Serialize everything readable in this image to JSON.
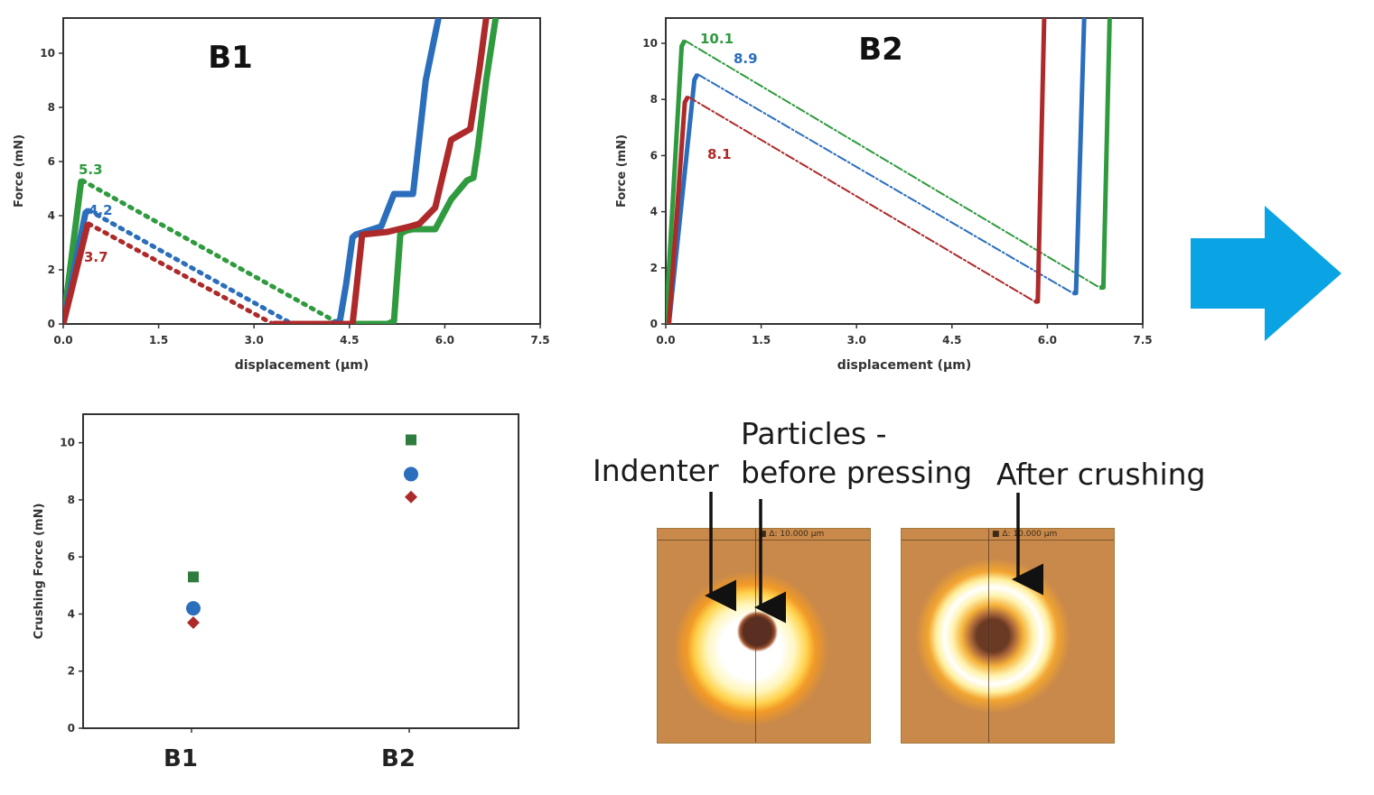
{
  "chart_data": [
    {
      "type": "line",
      "title": "B1",
      "xlabel": "displacement (µm)",
      "ylabel": "Force (mN)",
      "xlim": [
        0,
        7.5
      ],
      "ylim": [
        0,
        11.3
      ],
      "xticks": [
        "0.0",
        "1.5",
        "3.0",
        "4.5",
        "6.0",
        "7.5"
      ],
      "yticks": [
        "0",
        "2",
        "4",
        "6",
        "8",
        "10"
      ],
      "grid": false,
      "series": [
        {
          "color": "#2f9a3e",
          "peak_label": "5.3",
          "x": [
            0.0,
            0.28,
            0.3,
            4.35,
            5.1,
            5.2,
            5.3,
            5.35,
            5.4,
            5.5,
            5.85,
            6.1,
            6.35,
            6.45,
            6.52,
            6.65,
            6.8
          ],
          "y": [
            0.0,
            5.25,
            5.3,
            0.0,
            0.0,
            0.1,
            3.3,
            3.4,
            3.45,
            3.5,
            3.5,
            4.6,
            5.3,
            5.4,
            6.5,
            9.0,
            11.3
          ]
        },
        {
          "color": "#2a6ebc",
          "peak_label": "4.2",
          "x": [
            0.0,
            0.35,
            0.4,
            3.6,
            4.2,
            4.35,
            4.45,
            4.55,
            4.6,
            5.0,
            5.2,
            5.5,
            5.7,
            5.9
          ],
          "y": [
            0.0,
            4.1,
            4.2,
            0.0,
            0.0,
            0.1,
            1.5,
            3.2,
            3.3,
            3.6,
            4.8,
            4.8,
            9.0,
            11.3
          ]
        },
        {
          "color": "#ae2a2a",
          "peak_label": "3.7",
          "x": [
            0.0,
            0.38,
            0.4,
            3.3,
            4.55,
            4.62,
            4.7,
            5.1,
            5.45,
            5.6,
            5.85,
            6.1,
            6.4,
            6.55,
            6.65
          ],
          "y": [
            0.0,
            3.65,
            3.7,
            0.0,
            0.0,
            1.5,
            3.3,
            3.4,
            3.6,
            3.7,
            4.3,
            6.8,
            7.2,
            9.5,
            11.3
          ]
        }
      ]
    },
    {
      "type": "line",
      "title": "B2",
      "xlabel": "displacement (µm)",
      "ylabel": "Force (mN)",
      "xlim": [
        0,
        7.5
      ],
      "ylim": [
        0,
        10.9
      ],
      "xticks": [
        "0.0",
        "1.5",
        "3.0",
        "4.5",
        "6.0",
        "7.5"
      ],
      "yticks": [
        "0",
        "2",
        "4",
        "6",
        "8",
        "10"
      ],
      "grid": false,
      "series": [
        {
          "color": "#2f9a3e",
          "peak_label": "10.1",
          "x": [
            0.0,
            0.25,
            0.3,
            6.82,
            6.88,
            6.98
          ],
          "y": [
            0.0,
            9.9,
            10.1,
            1.3,
            1.3,
            10.9
          ]
        },
        {
          "color": "#2a6ebc",
          "peak_label": "8.9",
          "x": [
            0.05,
            0.45,
            0.5,
            6.4,
            6.45,
            6.58
          ],
          "y": [
            0.0,
            8.7,
            8.9,
            1.1,
            1.1,
            10.9
          ]
        },
        {
          "color": "#ae2a2a",
          "peak_label": "8.1",
          "x": [
            0.05,
            0.3,
            0.35,
            5.8,
            5.85,
            5.95
          ],
          "y": [
            0.0,
            7.9,
            8.1,
            0.8,
            0.8,
            10.9
          ]
        }
      ]
    },
    {
      "type": "scatter",
      "ylabel": "Crushing Force (mN)",
      "categories": [
        "B1",
        "B2"
      ],
      "ylim": [
        0,
        11.0
      ],
      "yticks": [
        "0",
        "2",
        "4",
        "6",
        "8",
        "10"
      ],
      "grid": false,
      "series": [
        {
          "color": "#2f7d3e",
          "marker": "square",
          "values": [
            5.3,
            10.1
          ]
        },
        {
          "color": "#2a6ebc",
          "marker": "circle",
          "values": [
            4.2,
            8.9
          ]
        },
        {
          "color": "#ae2a2a",
          "marker": "diamond",
          "values": [
            3.7,
            8.1
          ]
        }
      ]
    }
  ],
  "annotations": {
    "indenter": "Indenter",
    "particles_line1": "Particles -",
    "particles_line2": "before pressing",
    "after_crushing": "After crushing"
  },
  "photos": {
    "before_scale": "■ Δ: 10.000 µm",
    "after_scale": "■ Δ: 10.000 µm"
  },
  "arrow": {
    "color": "#0aa4e4",
    "icon": "right-arrow-icon"
  }
}
